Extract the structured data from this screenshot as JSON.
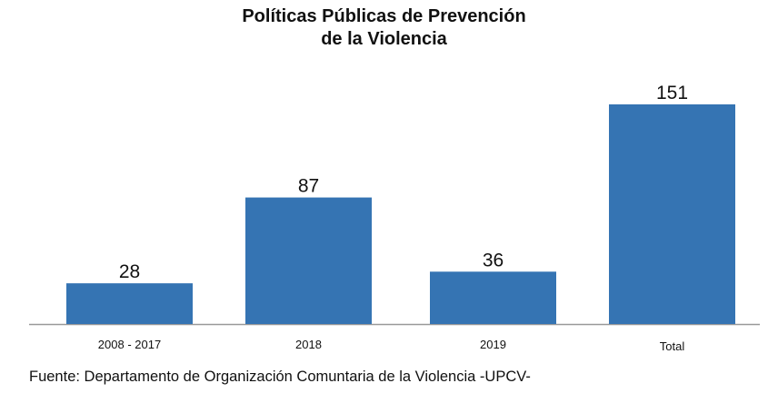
{
  "chart_data": {
    "type": "bar",
    "title": [
      "Políticas Públicas de Prevención",
      "de la Violencia"
    ],
    "categories": [
      "2008 - 2017",
      "2018",
      "2019",
      "Total"
    ],
    "values": [
      28,
      87,
      36,
      151
    ],
    "data_labels": [
      "28",
      "87",
      "36",
      "151"
    ],
    "xlabel": "",
    "ylabel": "",
    "ylim": [
      0,
      151
    ],
    "grid": false,
    "legend": "none",
    "bar_color": "#3574b3",
    "axis_color": "#999999"
  },
  "source": "Fuente: Departamento de Organización Comuntaria de la Violencia -UPCV-"
}
